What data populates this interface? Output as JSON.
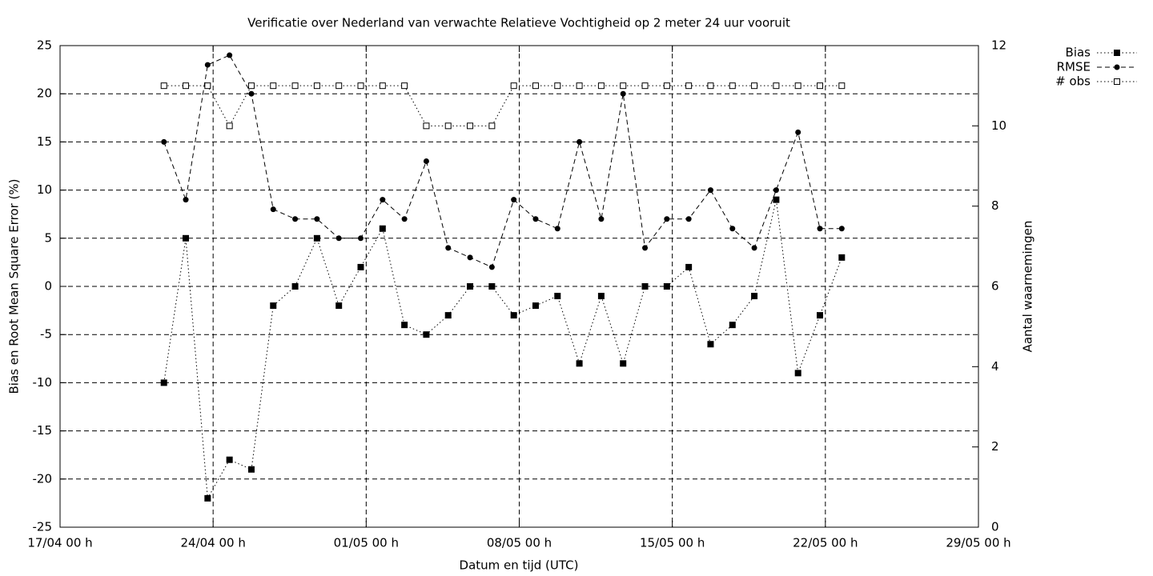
{
  "chart_data": {
    "type": "line",
    "title": "Verificatie over Nederland van verwachte Relatieve Vochtigheid op 2 meter 24 uur vooruit",
    "xlabel": "Datum en tijd (UTC)",
    "ylabel": "Bias en Root Mean Square Error (%)",
    "y2label": "Aantal waarnemingen",
    "x": [
      "21/04 18 h",
      "22/04 18 h",
      "23/04 18 h",
      "24/04 18 h",
      "25/04 18 h",
      "26/04 18 h",
      "27/04 18 h",
      "28/04 18 h",
      "29/04 18 h",
      "30/04 18 h",
      "01/05 18 h",
      "02/05 18 h",
      "03/05 18 h",
      "04/05 18 h",
      "05/05 18 h",
      "06/05 18 h",
      "07/05 18 h",
      "08/05 18 h",
      "09/05 18 h",
      "10/05 18 h",
      "11/05 18 h",
      "12/05 18 h",
      "13/05 18 h",
      "14/05 18 h",
      "15/05 18 h",
      "16/05 18 h",
      "17/05 18 h",
      "18/05 18 h",
      "19/05 18 h",
      "20/05 18 h",
      "21/05 18 h",
      "22/05 18 h"
    ],
    "series": [
      {
        "name": "Bias",
        "color": "#000000",
        "line": "dotted",
        "marker": "square",
        "values": [
          -10,
          5,
          -22,
          -18,
          -19,
          -2,
          0,
          5,
          -2,
          2,
          6,
          -4,
          -5,
          -3,
          0,
          0,
          -3,
          -2,
          -1,
          -8,
          -1,
          -8,
          0,
          0,
          2,
          -6,
          -4,
          -1,
          9,
          -9,
          -3,
          3
        ]
      },
      {
        "name": "RMSE",
        "color": "#000000",
        "line": "dashed",
        "marker": "circle",
        "values": [
          15,
          9,
          23,
          24,
          20,
          8,
          7,
          7,
          5,
          5,
          9,
          7,
          13,
          4,
          3,
          2,
          9,
          7,
          6,
          15,
          7,
          20,
          4,
          7,
          7,
          10,
          6,
          4,
          10,
          16,
          6,
          6
        ]
      },
      {
        "name": "# obs",
        "color": "#000000",
        "line": "dotted",
        "marker": "open-square",
        "axis": "y2",
        "values": [
          11,
          11,
          11,
          10,
          11,
          11,
          11,
          11,
          11,
          11,
          11,
          11,
          10,
          10,
          10,
          10,
          11,
          11,
          11,
          11,
          11,
          11,
          11,
          11,
          11,
          11,
          11,
          11,
          11,
          11,
          11,
          11
        ]
      }
    ],
    "xlim": [
      "17/04 00 h",
      "29/05 00 h"
    ],
    "xticks": [
      "17/04 00 h",
      "24/04 00 h",
      "01/05 00 h",
      "08/05 00 h",
      "15/05 00 h",
      "22/05 00 h",
      "29/05 00 h"
    ],
    "ylim": [
      -25,
      25
    ],
    "yticks": [
      -25,
      -20,
      -15,
      -10,
      -5,
      0,
      5,
      10,
      15,
      20,
      25
    ],
    "y2lim": [
      0,
      12
    ],
    "y2ticks": [
      0,
      2,
      4,
      6,
      8,
      10,
      12
    ],
    "grid": true,
    "legend": "top-right"
  }
}
